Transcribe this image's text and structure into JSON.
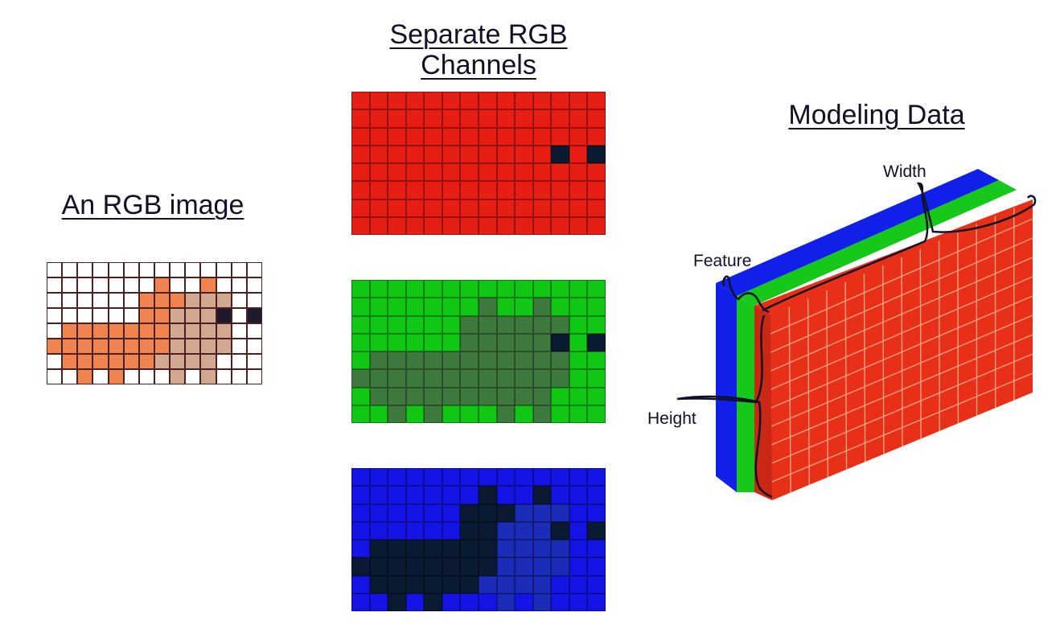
{
  "titles": {
    "rgb_image": "An RGB image",
    "separate_channels_line1": "Separate RGB",
    "separate_channels_line2": "Channels",
    "modeling_data": "Modeling Data"
  },
  "axis_labels": {
    "width": "Width",
    "feature": "Feature",
    "height": "Height"
  },
  "colors": {
    "white": "#ffffff",
    "fox_orange": "#ef8450",
    "fox_light": "#d2a890",
    "eye_dark": "#1e1a2e",
    "red": "#e61e14",
    "red_dark": "#b81810",
    "green": "#10c814",
    "green_dark": "#3e7a3e",
    "blue": "#1414e6",
    "blue_mid": "#1a2cb8",
    "navy": "#0a1a32",
    "volume_red": "#e83018",
    "volume_green": "#16c81a",
    "volume_blue": "#1020e8"
  },
  "image_grid": [
    "WWWWWWWWWWWWWW",
    "WWWWWWWOWWOWWW",
    "WWWWWWOOOLLLWW",
    "WWWWWWOOLLLKWK",
    "WOOOOOOOLLLLWW",
    "OOOOOOOOLLLLWW",
    "WOOOOOOLLLLWWW",
    "WWOWOWWWLWLWWW"
  ]
}
